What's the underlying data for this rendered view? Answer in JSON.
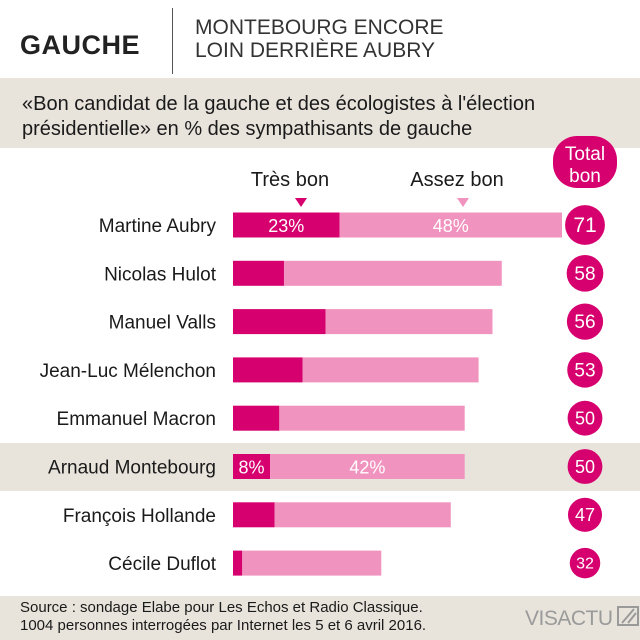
{
  "header": {
    "tag": "GAUCHE",
    "headline_line1": "MONTEBOURG ENCORE",
    "headline_line2": "LOIN DERRIÈRE AUBRY"
  },
  "subtitle": {
    "line1": "«Bon candidat de la gauche et des écologistes à l'élection",
    "line2": "présidentielle» en % des sympathisants de gauche"
  },
  "colors": {
    "tres_bon": "#d6006f",
    "assez_bon": "#f193bf",
    "total_circle": "#d6006f",
    "band": "#e8e4dc"
  },
  "chart_data": {
    "type": "bar",
    "stacked": true,
    "orientation": "horizontal",
    "categories": [
      "Martine Aubry",
      "Nicolas Hulot",
      "Manuel Valls",
      "Jean-Luc Mélenchon",
      "Emmanuel Macron",
      "Arnaud Montebourg",
      "François Hollande",
      "Cécile Duflot"
    ],
    "series": [
      {
        "name": "Très bon",
        "values": [
          23,
          11,
          20,
          15,
          10,
          8,
          9,
          2
        ]
      },
      {
        "name": "Assez bon",
        "values": [
          48,
          47,
          36,
          38,
          40,
          42,
          38,
          30
        ]
      }
    ],
    "data_labels": [
      {
        "row": 0,
        "series": 0,
        "text": "23%"
      },
      {
        "row": 0,
        "series": 1,
        "text": "48%"
      },
      {
        "row": 5,
        "series": 0,
        "text": "8%"
      },
      {
        "row": 5,
        "series": 1,
        "text": "42%"
      }
    ],
    "totals_header": [
      "Total",
      "bon"
    ],
    "totals": [
      71,
      58,
      56,
      53,
      50,
      50,
      47,
      32
    ],
    "highlighted_category": "Arnaud Montebourg",
    "xlim": [
      0,
      71
    ]
  },
  "footer": {
    "source_line1": "Source : sondage Elabe pour Les Echos et Radio Classique.",
    "source_line2": "1004 personnes interrogées par Internet les 5 et 6 avril 2016.",
    "logo": "VISACTU"
  }
}
